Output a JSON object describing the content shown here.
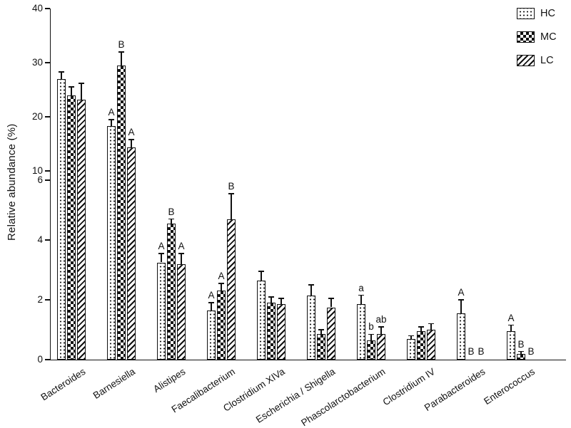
{
  "figure": {
    "background_color": "#ffffff",
    "ink_color": "#111111"
  },
  "legend": {
    "position": "top-right",
    "items": [
      {
        "label": "HC",
        "pattern": "dots"
      },
      {
        "label": "MC",
        "pattern": "checker"
      },
      {
        "label": "LC",
        "pattern": "stripes"
      }
    ]
  },
  "chart_data": {
    "type": "bar",
    "title": "",
    "xlabel": "",
    "ylabel": "Relative abundance (%)",
    "grid": false,
    "legend_position": "top-right",
    "broken_axis": {
      "lower_range": [
        0,
        6
      ],
      "lower_ticks": [
        0,
        2,
        4,
        6
      ],
      "upper_range": [
        10,
        40
      ],
      "upper_ticks": [
        10,
        20,
        30,
        40
      ]
    },
    "categories": [
      "Bacteroides",
      "Barnesiella",
      "Alistipes",
      "Faecalibacterium",
      "Clostridium XIVa",
      "Escherichia / Shigella",
      "Phascolarctobacterium",
      "Clostridium IV",
      "Parabacteroides",
      "Enterococcus"
    ],
    "series": [
      {
        "name": "HC",
        "pattern": "dots",
        "values": [
          27.0,
          18.3,
          3.25,
          1.65,
          2.65,
          2.15,
          1.85,
          0.7,
          1.55,
          0.95
        ],
        "errors": [
          1.3,
          1.2,
          0.3,
          0.25,
          0.3,
          0.35,
          0.3,
          0.1,
          0.45,
          0.2
        ],
        "letters": [
          "",
          "A",
          "A",
          "A",
          "",
          "",
          "a",
          "",
          "A",
          "A"
        ]
      },
      {
        "name": "MC",
        "pattern": "checker",
        "values": [
          24.0,
          29.5,
          4.55,
          2.3,
          1.9,
          0.85,
          0.65,
          0.95,
          0,
          0.2
        ],
        "errors": [
          1.5,
          2.5,
          0.15,
          0.25,
          0.2,
          0.15,
          0.2,
          0.15,
          0,
          0.07
        ],
        "letters": [
          "",
          "B",
          "B",
          "A",
          "",
          "",
          "b",
          "",
          "B",
          "B"
        ]
      },
      {
        "name": "LC",
        "pattern": "stripes",
        "values": [
          23.2,
          14.4,
          3.2,
          4.7,
          1.85,
          1.75,
          0.85,
          1.0,
          0,
          0
        ],
        "errors": [
          3.0,
          1.4,
          0.35,
          0.85,
          0.2,
          0.3,
          0.25,
          0.2,
          0,
          0
        ],
        "letters": [
          "",
          "A",
          "A",
          "B",
          "",
          "",
          "ab",
          "",
          "B",
          "B"
        ]
      }
    ]
  }
}
